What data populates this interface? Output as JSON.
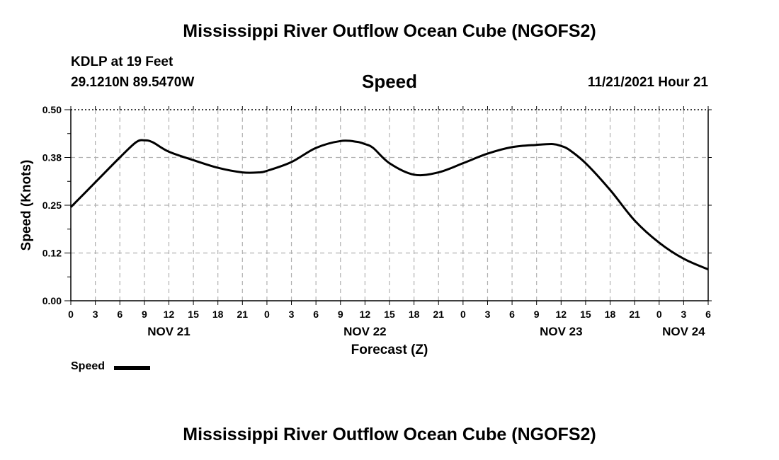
{
  "header": {
    "title": "Mississippi River Outflow Ocean Cube (NGOFS2)",
    "station": "KDLP at 19 Feet",
    "coords": "29.1210N  89.5470W",
    "parameter": "Speed",
    "datetime": "11/21/2021 Hour 21"
  },
  "footer": {
    "title": "Mississippi River Outflow Ocean Cube (NGOFS2)"
  },
  "legend": {
    "label": "Speed",
    "color": "#000000"
  },
  "chart_data": {
    "type": "line",
    "title": "Speed",
    "xlabel": "Forecast (Z)",
    "ylabel": "Speed (Knots)",
    "grid": true,
    "xlim": [
      0,
      78
    ],
    "ylim": [
      0,
      0.5
    ],
    "ytick_labels": [
      "0.00",
      "0.12",
      "0.25",
      "0.38",
      "0.50"
    ],
    "xtick_labels": [
      "0",
      "3",
      "6",
      "9",
      "12",
      "15",
      "18",
      "21",
      "0",
      "3",
      "6",
      "9",
      "12",
      "15",
      "18",
      "21",
      "0",
      "3",
      "6",
      "9",
      "12",
      "15",
      "18",
      "21",
      "0",
      "3",
      "6"
    ],
    "date_labels": [
      {
        "label": "NOV 21",
        "at": 12
      },
      {
        "label": "NOV 22",
        "at": 36
      },
      {
        "label": "NOV 23",
        "at": 60
      },
      {
        "label": "NOV 24",
        "at": 75
      }
    ],
    "series": [
      {
        "name": "Speed",
        "color": "#000000",
        "x": [
          0,
          3,
          6,
          8,
          9,
          10,
          12,
          15,
          18,
          21,
          23,
          24,
          27,
          30,
          33,
          35,
          36,
          37,
          39,
          42,
          45,
          48,
          51,
          54,
          57,
          59,
          60,
          61,
          63,
          66,
          69,
          72,
          75,
          78
        ],
        "y": [
          0.245,
          0.31,
          0.375,
          0.415,
          0.42,
          0.415,
          0.39,
          0.368,
          0.348,
          0.336,
          0.336,
          0.34,
          0.363,
          0.4,
          0.418,
          0.416,
          0.41,
          0.4,
          0.36,
          0.33,
          0.336,
          0.36,
          0.385,
          0.402,
          0.408,
          0.41,
          0.405,
          0.395,
          0.36,
          0.29,
          0.21,
          0.152,
          0.11,
          0.082
        ]
      }
    ]
  }
}
